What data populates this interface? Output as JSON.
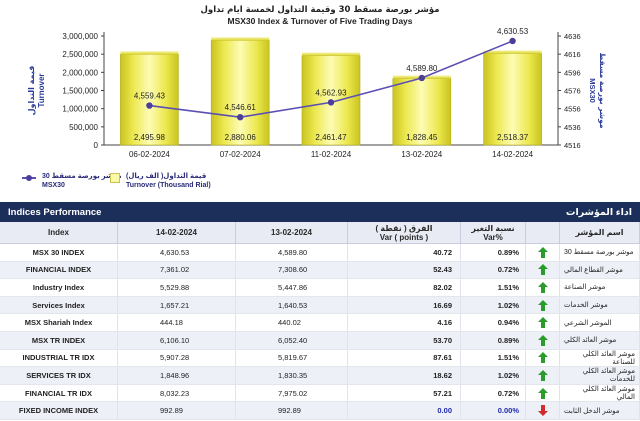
{
  "chart_data": {
    "type": "bar",
    "title_ar": "مؤشر بورصة مسقط 30 وقيمة التداول لخمسة ايام تداول",
    "title": "MSX30 Index & Turnover of Five Trading Days",
    "categories": [
      "06-02-2024",
      "07-02-2024",
      "11-02-2024",
      "13-02-2024",
      "14-02-2024"
    ],
    "series": [
      {
        "name": "Turnover (Thousand Rial)",
        "name_ar": "قيمة التداول( الف ريال)",
        "type": "bar",
        "axis": "left",
        "values": [
          2495.98,
          2880.06,
          2461.47,
          1828.45,
          2518.37
        ],
        "labels": [
          "2,495.98",
          "2,880.06",
          "2,461.47",
          "1,828.45",
          "2,518.37"
        ]
      },
      {
        "name": "MSX30",
        "name_ar": "موشر بورصة مسقط 30",
        "type": "line",
        "axis": "right",
        "values": [
          4559.43,
          4546.61,
          4562.93,
          4589.8,
          4630.53
        ],
        "labels": [
          "4,559.43",
          "4,546.61",
          "4,562.93",
          "4,589.80",
          "4,630.53"
        ]
      }
    ],
    "left_axis": {
      "label": "Turnover",
      "label_ar": "قيمة التداول",
      "min": 0,
      "max": 3000000,
      "ticks": [
        "0",
        "500,000",
        "1,000,000",
        "1,500,000",
        "2,000,000",
        "2,500,000",
        "3,000,000"
      ]
    },
    "right_axis": {
      "label": "MSX30",
      "label_ar": "موشر بورصة مسقط",
      "min": 4516,
      "max": 4636,
      "ticks": [
        "4516",
        "4536",
        "4556",
        "4576",
        "4596",
        "4616",
        "4636"
      ]
    },
    "colors": {
      "bar": "#e3df3c",
      "bar_light": "#fdfcb4",
      "line": "#5b4fb3",
      "marker": "#4a3f9a",
      "axis": "#444444"
    }
  },
  "legend": {
    "index_ar": "موشر بورصة مسقط 30",
    "index": "MSX30",
    "turnover_ar": "قيمة التداول( الف ريال)",
    "turnover": "Turnover (Thousand Rial)"
  },
  "table": {
    "title": "Indices Performance",
    "title_ar": "اداء المؤشرات",
    "headers": {
      "index": "Index",
      "current_date": "14-02-2024",
      "previous_date": "13-02-2024",
      "var_ar": "الفرق ( نقطة )",
      "var": "Var ( points )",
      "pct_ar": "نسبة التغير",
      "pct": "Var%",
      "name_ar": "اسم المؤشر"
    },
    "rows": [
      {
        "index": "MSX 30 INDEX",
        "current": "4,630.53",
        "previous": "4,589.80",
        "var": "40.72",
        "pct": "0.89%",
        "dir": "up",
        "name_ar": "موشر بورصة مسقط 30"
      },
      {
        "index": "FINANCIAL INDEX",
        "current": "7,361.02",
        "previous": "7,308.60",
        "var": "52.43",
        "pct": "0.72%",
        "dir": "up",
        "name_ar": "موشر القطاع المالي"
      },
      {
        "index": "Industry Index",
        "current": "5,529.88",
        "previous": "5,447.86",
        "var": "82.02",
        "pct": "1.51%",
        "dir": "up",
        "name_ar": "موشر الصناعة"
      },
      {
        "index": "Services Index",
        "current": "1,657.21",
        "previous": "1,640.53",
        "var": "16.69",
        "pct": "1.02%",
        "dir": "up",
        "name_ar": "موشر الخدمات"
      },
      {
        "index": "MSX Shariah Index",
        "current": "444.18",
        "previous": "440.02",
        "var": "4.16",
        "pct": "0.94%",
        "dir": "up",
        "name_ar": "الموشر الشرعي"
      },
      {
        "index": "MSX TR INDEX",
        "current": "6,106.10",
        "previous": "6,052.40",
        "var": "53.70",
        "pct": "0.89%",
        "dir": "up",
        "name_ar": "موشر العائد الكلي"
      },
      {
        "index": "INDUSTRIAL TR IDX",
        "current": "5,907.28",
        "previous": "5,819.67",
        "var": "87.61",
        "pct": "1.51%",
        "dir": "up",
        "name_ar": "موشر العائد الكلي للصناعة"
      },
      {
        "index": "SERVICES TR IDX",
        "current": "1,848.96",
        "previous": "1,830.35",
        "var": "18.62",
        "pct": "1.02%",
        "dir": "up",
        "name_ar": "موشر العائد الكلي للخدمات"
      },
      {
        "index": "FINANCIAL TR IDX",
        "current": "8,032.23",
        "previous": "7,975.02",
        "var": "57.21",
        "pct": "0.72%",
        "dir": "up",
        "name_ar": "موشر العائد الكلي المالي"
      },
      {
        "index": "FIXED INCOME INDEX",
        "current": "992.89",
        "previous": "992.89",
        "var": "0.00",
        "pct": "0.00%",
        "dir": "down",
        "name_ar": "موشر الدخل الثابت"
      }
    ]
  }
}
